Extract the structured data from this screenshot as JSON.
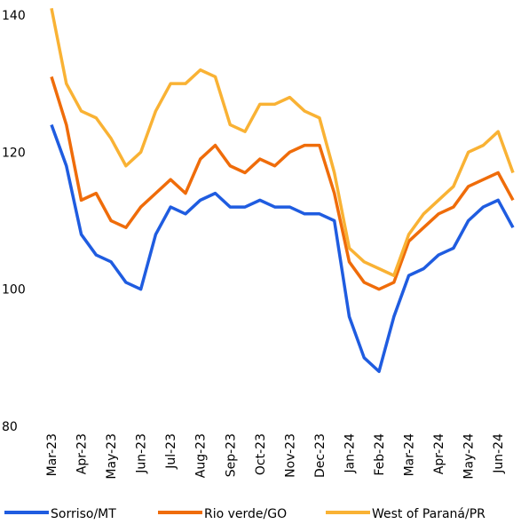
{
  "chart_data": {
    "type": "line",
    "categories": [
      "Mar-23",
      null,
      "Apr-23",
      null,
      "May-23",
      null,
      "Jun-23",
      null,
      "Jul-23",
      null,
      "Aug-23",
      null,
      "Sep-23",
      null,
      "Oct-23",
      null,
      "Nov-23",
      null,
      "Dec-23",
      null,
      "Jan-24",
      null,
      "Feb-24",
      null,
      "Mar-24",
      null,
      "Apr-24",
      null,
      "May-24",
      null,
      "Jun-24",
      null
    ],
    "series": [
      {
        "name": "Sorriso/MT",
        "color": "#1f5ce0",
        "values": [
          124,
          118,
          108,
          105,
          104,
          101,
          100,
          108,
          112,
          111,
          113,
          114,
          112,
          112,
          113,
          112,
          112,
          111,
          111,
          110,
          96,
          90,
          88,
          96,
          102,
          103,
          105,
          106,
          110,
          112,
          113,
          109
        ]
      },
      {
        "name": "Rio verde/GO",
        "color": "#ef6c0a",
        "values": [
          131,
          124,
          113,
          114,
          110,
          109,
          112,
          114,
          116,
          114,
          119,
          121,
          118,
          117,
          119,
          118,
          120,
          121,
          121,
          114,
          104,
          101,
          100,
          101,
          107,
          109,
          111,
          112,
          115,
          116,
          117,
          113
        ]
      },
      {
        "name": "West of Paraná/PR",
        "color": "#f9b234",
        "values": [
          141,
          130,
          126,
          125,
          122,
          118,
          120,
          126,
          130,
          130,
          132,
          131,
          124,
          123,
          127,
          127,
          128,
          126,
          125,
          117,
          106,
          104,
          103,
          102,
          108,
          111,
          113,
          115,
          120,
          121,
          123,
          117
        ]
      }
    ],
    "ylim": [
      80,
      140
    ],
    "yticks": [
      80,
      100,
      120,
      140
    ]
  }
}
